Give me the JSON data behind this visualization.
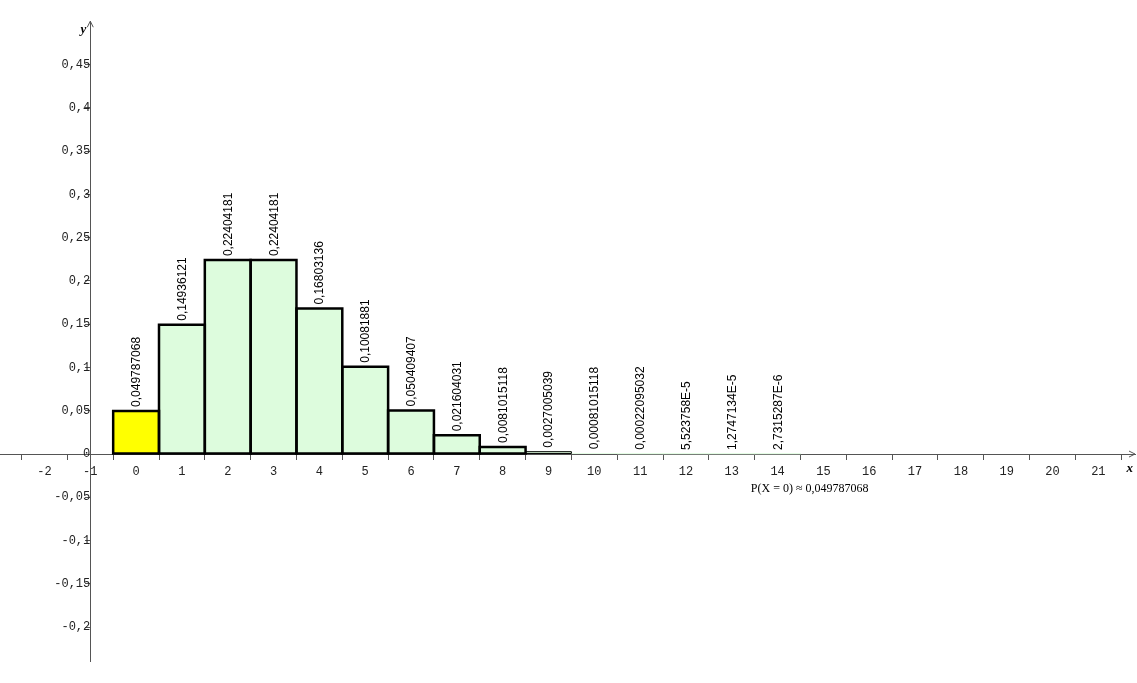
{
  "chart_data": {
    "type": "bar",
    "xlabel": "x",
    "ylabel": "y",
    "x": [
      0,
      1,
      2,
      3,
      4,
      5,
      6,
      7,
      8,
      9,
      10,
      11,
      12,
      13,
      14
    ],
    "values": [
      0.049787068,
      0.14936121,
      0.22404181,
      0.22404181,
      0.16803136,
      0.10081881,
      0.050409407,
      0.021604031,
      0.0081015118,
      0.0027005039,
      0.00081015118,
      0.00022095032,
      5.523758e-05,
      1.2747134e-05,
      2.7315287e-06
    ],
    "value_labels": [
      "0,049787068",
      "0,14936121",
      "0,22404181",
      "0,22404181",
      "0,16803136",
      "0,10081881",
      "0,050409407",
      "0,021604031",
      "0,0081015118",
      "0,0027005039",
      "0,00081015118",
      "0,00022095032",
      "5,523758E-5",
      "1,2747134E-5",
      "2,7315287E-6"
    ],
    "colors": [
      "#ffff00",
      "#ddfcdd",
      "#ddfcdd",
      "#ddfcdd",
      "#ddfcdd",
      "#ddfcdd",
      "#ddfcdd",
      "#ddfcdd",
      "#ddfcdd",
      "#ddfcdd",
      "#ddfcdd",
      "#ddfcdd",
      "#ddfcdd",
      "#ddfcdd",
      "#ddfcdd"
    ],
    "xlim": [
      -2.97,
      21.8
    ],
    "xticks": [
      -2,
      -1,
      0,
      1,
      2,
      3,
      4,
      5,
      6,
      7,
      8,
      9,
      10,
      11,
      12,
      13,
      14,
      15,
      16,
      17,
      18,
      19,
      20,
      21
    ],
    "ylim": [
      -0.24,
      0.5
    ],
    "yticks": [
      {
        "value": -0.2,
        "label": "-0,2"
      },
      {
        "value": -0.15,
        "label": "-0,15"
      },
      {
        "value": -0.1,
        "label": "-0,1"
      },
      {
        "value": -0.05,
        "label": "-0,05"
      },
      {
        "value": 0,
        "label": "0"
      },
      {
        "value": 0.05,
        "label": "0,05"
      },
      {
        "value": 0.1,
        "label": "0,1"
      },
      {
        "value": 0.15,
        "label": "0,15"
      },
      {
        "value": 0.2,
        "label": "0,2"
      },
      {
        "value": 0.25,
        "label": "0,25"
      },
      {
        "value": 0.3,
        "label": "0,3"
      },
      {
        "value": 0.35,
        "label": "0,35"
      },
      {
        "value": 0.4,
        "label": "0,4"
      },
      {
        "value": 0.45,
        "label": "0,45"
      }
    ],
    "annotations": [
      "P(X = 0) ≈ 0,049787068"
    ],
    "grid": false,
    "legend": false
  }
}
